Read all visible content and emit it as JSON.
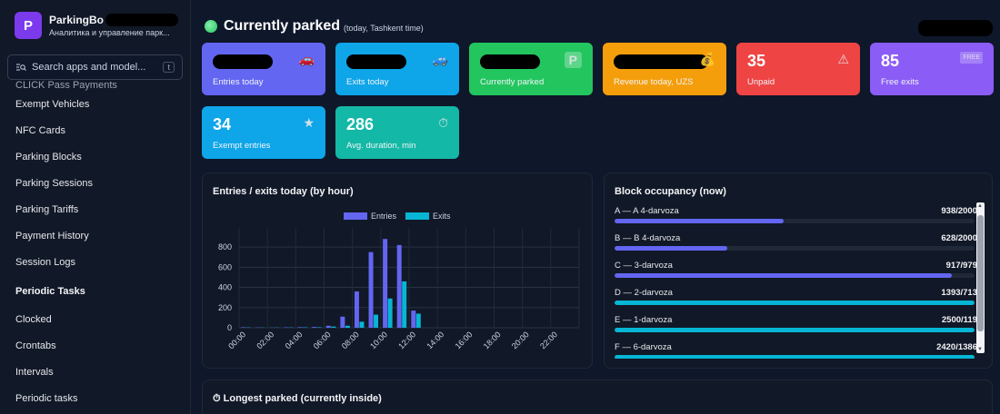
{
  "brand": {
    "logo_letter": "P",
    "name": "ParkingBo",
    "subtitle": "Аналитика и управление парк..."
  },
  "search": {
    "placeholder": "Search apps and model...",
    "shortcut": "t"
  },
  "sidebar": {
    "clipped_item": "CLICK Pass Payments",
    "items": [
      {
        "label": "Exempt Vehicles"
      },
      {
        "label": "NFC Cards"
      },
      {
        "label": "Parking Blocks"
      },
      {
        "label": "Parking Sessions"
      },
      {
        "label": "Parking Tariffs"
      },
      {
        "label": "Payment History"
      },
      {
        "label": "Session Logs"
      }
    ],
    "section": "Periodic Tasks",
    "section_items": [
      {
        "label": "Clocked"
      },
      {
        "label": "Crontabs"
      },
      {
        "label": "Intervals"
      },
      {
        "label": "Periodic tasks"
      }
    ]
  },
  "header": {
    "title": "Currently parked",
    "subtitle": "(today, Tashkent time)"
  },
  "cards": [
    {
      "value": "",
      "label": "Entries today",
      "color": "#6366f1",
      "icon": "car-icon",
      "glyph": "🚗",
      "redacted": true
    },
    {
      "value": "",
      "label": "Exits today",
      "color": "#0ea5e9",
      "icon": "car-exit-icon",
      "glyph": "🚙",
      "redacted": true
    },
    {
      "value": "",
      "label": "Currently parked",
      "color": "#22c55e",
      "icon": "parking-icon",
      "glyph": "P",
      "redacted": true
    },
    {
      "value": "",
      "label": "Revenue today, UZS",
      "color": "#f59e0b",
      "icon": "money-icon",
      "glyph": "💰",
      "redacted": true
    },
    {
      "value": "35",
      "label": "Unpaid",
      "color": "#ef4444",
      "icon": "warning-icon",
      "glyph": "⚠",
      "redacted": false
    },
    {
      "value": "85",
      "label": "Free exits",
      "color": "#8b5cf6",
      "icon": "free-icon",
      "glyph": "FREE",
      "redacted": false
    },
    {
      "value": "34",
      "label": "Exempt entries",
      "color": "#0ea5e9",
      "icon": "star-icon",
      "glyph": "★",
      "redacted": false
    },
    {
      "value": "286",
      "label": "Avg. duration, min",
      "color": "#14b8a6",
      "icon": "timer-icon",
      "glyph": "⏱",
      "redacted": false
    }
  ],
  "chart_panel": {
    "title": "Entries / exits today (by hour)"
  },
  "chart_data": {
    "type": "bar",
    "title": "Entries / exits today (by hour)",
    "categories": [
      "00:00",
      "01:00",
      "02:00",
      "03:00",
      "04:00",
      "05:00",
      "06:00",
      "07:00",
      "08:00",
      "09:00",
      "10:00",
      "11:00",
      "12:00",
      "13:00",
      "14:00",
      "15:00",
      "16:00",
      "17:00",
      "18:00",
      "19:00",
      "20:00",
      "21:00",
      "22:00",
      "23:00"
    ],
    "tick_labels": [
      "00:00",
      "02:00",
      "04:00",
      "06:00",
      "08:00",
      "10:00",
      "12:00",
      "14:00",
      "16:00",
      "18:00",
      "20:00",
      "22:00"
    ],
    "series": [
      {
        "name": "Entries",
        "color": "#6366f1",
        "values": [
          5,
          3,
          2,
          4,
          6,
          8,
          20,
          110,
          360,
          750,
          880,
          820,
          170,
          0,
          0,
          0,
          0,
          0,
          0,
          0,
          0,
          0,
          0,
          0
        ]
      },
      {
        "name": "Exits",
        "color": "#06b6d4",
        "values": [
          3,
          2,
          2,
          3,
          4,
          5,
          12,
          20,
          60,
          130,
          290,
          460,
          140,
          0,
          0,
          0,
          0,
          0,
          0,
          0,
          0,
          0,
          0,
          0
        ]
      }
    ],
    "yticks": [
      0,
      200,
      400,
      600,
      800
    ],
    "ylim": [
      0,
      900
    ],
    "legend": "top",
    "grid": true
  },
  "occupancy": {
    "title": "Block occupancy (now)",
    "rows": [
      {
        "label": "A — A 4-darvoza",
        "value": "938/2000",
        "fill": 0.469,
        "color": "#6366f1"
      },
      {
        "label": "B — B 4-darvoza",
        "value": "628/2000",
        "fill": 0.314,
        "color": "#6366f1"
      },
      {
        "label": "C — 3-darvoza",
        "value": "917/979",
        "fill": 0.937,
        "color": "#6366f1"
      },
      {
        "label": "D — 2-darvoza",
        "value": "1393/713",
        "fill": 1.0,
        "color": "#06b6d4"
      },
      {
        "label": "E — 1-darvoza",
        "value": "2500/119",
        "fill": 1.0,
        "color": "#06b6d4"
      },
      {
        "label": "F — 6-darvoza",
        "value": "2420/1386",
        "fill": 1.0,
        "color": "#06b6d4"
      }
    ]
  },
  "longest_panel": {
    "title": "⏱ Longest parked (currently inside)"
  }
}
